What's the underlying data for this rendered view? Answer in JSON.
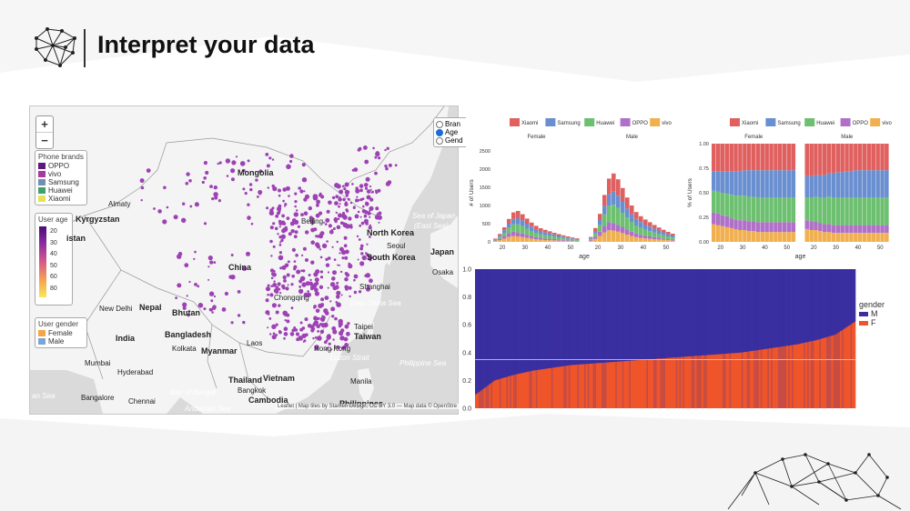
{
  "slide": {
    "title": "Interpret your data"
  },
  "map": {
    "zoom_in": "+",
    "zoom_out": "−",
    "view_options": [
      {
        "label": "Bran",
        "selected": false
      },
      {
        "label": "Age",
        "selected": true
      },
      {
        "label": "Gend",
        "selected": false
      }
    ],
    "phone_brands": {
      "title": "Phone brands",
      "items": [
        {
          "label": "OPPO",
          "color": "#5b1a7a"
        },
        {
          "label": "vivo",
          "color": "#a53aa0"
        },
        {
          "label": "Samsung",
          "color": "#6f8fb3"
        },
        {
          "label": "Huawei",
          "color": "#3fa26a"
        },
        {
          "label": "Xiaomi",
          "color": "#e5e25a"
        }
      ]
    },
    "user_age": {
      "title": "User age",
      "ticks": [
        "20",
        "30",
        "40",
        "50",
        "60",
        "80"
      ]
    },
    "user_gender": {
      "title": "User gender",
      "items": [
        {
          "label": "Female",
          "color": "#f4a547"
        },
        {
          "label": "Male",
          "color": "#7aa5d6"
        }
      ]
    },
    "labels": {
      "mongolia": "Mongolia",
      "almaty": "Almaty",
      "kyrgyzstan": "Kyrgyzstan",
      "istan": "istan",
      "china": "China",
      "beijing": "Beijing",
      "north_korea": "North Korea",
      "seoul": "Seoul",
      "south_korea": "South Korea",
      "japan": "Japan",
      "osaka": "Osaka",
      "sea_of_japan": "Sea of Japan",
      "east_sea": "(East Sea)",
      "shanghai": "Shanghai",
      "east_china_sea": "East China Sea",
      "chongqing": "Chongqing",
      "nepal": "Nepal",
      "new_delhi": "New Delhi",
      "bhutan": "Bhutan",
      "india": "India",
      "bangladesh": "Bangladesh",
      "kolkata": "Kolkata",
      "myanmar": "Myanmar",
      "laos": "Laos",
      "mumbai": "Mumbai",
      "hyderabad": "Hyderabad",
      "thailand": "Thailand",
      "vietnam": "Vietnam",
      "bangkok": "Bangkok",
      "bay_of_bengal": "Bay of Bengal",
      "cambodia": "Cambodia",
      "bangalore": "Bangalore",
      "chennai": "Chennai",
      "taipei": "Taipei",
      "taiwan": "Taiwan",
      "hong_kong": "Hong Kong",
      "luzon_strait": "Luzon Strait",
      "philippine_sea": "Philippine Sea",
      "philippines": "Philippines",
      "manila": "Manila",
      "an_sea": "an Sea",
      "andaman_sea": "Andaman Sea"
    },
    "attribution": "Leaflet | Map tiles by Stamen Design, CC BY 3.0 — Map data © OpenStre"
  },
  "colors": {
    "xiaomi": "#e06060",
    "samsung": "#6a8fd0",
    "huawei": "#6cc070",
    "oppo": "#b070c8",
    "vivo": "#f0b050",
    "gender_m": "#3a2fa0",
    "gender_f": "#f0552a"
  },
  "chart_data": [
    {
      "type": "bar",
      "stacked": true,
      "legend": [
        "Xiaomi",
        "Samsung",
        "Huawei",
        "OPPO",
        "vivo"
      ],
      "facets": [
        "Female",
        "Male"
      ],
      "xlabel": "age",
      "ylabel": "# of Users",
      "xticks": [
        "20",
        "30",
        "40",
        "50"
      ],
      "yticks": [
        "0",
        "500",
        "1000",
        "1500",
        "2000",
        "2500"
      ],
      "ylim": [
        0,
        2700
      ],
      "x": [
        17,
        19,
        21,
        23,
        25,
        27,
        29,
        31,
        33,
        35,
        37,
        39,
        41,
        43,
        45,
        47,
        49,
        51,
        53
      ],
      "series_female": [
        {
          "name": "vivo",
          "values": [
            20,
            50,
            90,
            140,
            160,
            150,
            130,
            110,
            90,
            70,
            60,
            50,
            45,
            40,
            35,
            30,
            25,
            20,
            15
          ]
        },
        {
          "name": "OPPO",
          "values": [
            20,
            40,
            70,
            100,
            120,
            110,
            100,
            80,
            70,
            60,
            50,
            45,
            40,
            35,
            30,
            25,
            20,
            15,
            12
          ]
        },
        {
          "name": "Huawei",
          "values": [
            20,
            50,
            90,
            150,
            200,
            220,
            200,
            170,
            140,
            120,
            100,
            90,
            80,
            70,
            60,
            50,
            40,
            30,
            25
          ]
        },
        {
          "name": "Samsung",
          "values": [
            15,
            40,
            70,
            110,
            150,
            170,
            160,
            140,
            120,
            100,
            90,
            80,
            70,
            60,
            50,
            40,
            35,
            30,
            25
          ]
        },
        {
          "name": "Xiaomi",
          "values": [
            15,
            40,
            80,
            130,
            180,
            200,
            170,
            140,
            110,
            90,
            75,
            65,
            55,
            45,
            40,
            35,
            30,
            25,
            20
          ]
        }
      ],
      "series_male": [
        {
          "name": "vivo",
          "values": [
            30,
            80,
            160,
            260,
            320,
            310,
            280,
            240,
            200,
            160,
            130,
            110,
            95,
            85,
            75,
            65,
            55,
            45,
            35
          ]
        },
        {
          "name": "OPPO",
          "values": [
            25,
            60,
            120,
            180,
            220,
            210,
            190,
            160,
            140,
            120,
            100,
            85,
            75,
            65,
            55,
            45,
            38,
            30,
            25
          ]
        },
        {
          "name": "Huawei",
          "values": [
            30,
            90,
            180,
            320,
            450,
            500,
            460,
            400,
            330,
            270,
            220,
            190,
            165,
            145,
            125,
            105,
            90,
            75,
            60
          ]
        },
        {
          "name": "Samsung",
          "values": [
            25,
            70,
            140,
            230,
            320,
            360,
            340,
            300,
            250,
            210,
            180,
            160,
            140,
            125,
            110,
            95,
            80,
            65,
            55
          ]
        },
        {
          "name": "Xiaomi",
          "values": [
            25,
            80,
            170,
            300,
            430,
            500,
            450,
            380,
            300,
            240,
            190,
            160,
            140,
            120,
            100,
            85,
            70,
            60,
            50
          ]
        }
      ]
    },
    {
      "type": "bar",
      "stacked": true,
      "normalized": true,
      "legend": [
        "Xiaomi",
        "Samsung",
        "Huawei",
        "OPPO",
        "vivo"
      ],
      "facets": [
        "Female",
        "Male"
      ],
      "xlabel": "age",
      "ylabel": "% of Users",
      "xticks": [
        "20",
        "30",
        "40",
        "50"
      ],
      "yticks": [
        "0.00",
        "0.25",
        "0.50",
        "0.75",
        "1.00"
      ],
      "ylim": [
        0,
        1
      ],
      "x": [
        17,
        19,
        21,
        23,
        25,
        27,
        29,
        31,
        33,
        35,
        37,
        39,
        41,
        43,
        45,
        47,
        49,
        51,
        53
      ],
      "series_female": [
        {
          "name": "vivo",
          "values": [
            0.18,
            0.17,
            0.16,
            0.15,
            0.14,
            0.13,
            0.12,
            0.12,
            0.11,
            0.11,
            0.1,
            0.1,
            0.1,
            0.1,
            0.1,
            0.1,
            0.1,
            0.1,
            0.1
          ]
        },
        {
          "name": "OPPO",
          "values": [
            0.12,
            0.12,
            0.11,
            0.11,
            0.1,
            0.1,
            0.1,
            0.1,
            0.1,
            0.1,
            0.1,
            0.1,
            0.1,
            0.1,
            0.1,
            0.1,
            0.1,
            0.1,
            0.1
          ]
        },
        {
          "name": "Huawei",
          "values": [
            0.22,
            0.22,
            0.23,
            0.23,
            0.24,
            0.24,
            0.25,
            0.25,
            0.25,
            0.25,
            0.25,
            0.25,
            0.25,
            0.25,
            0.25,
            0.25,
            0.25,
            0.25,
            0.25
          ]
        },
        {
          "name": "Samsung",
          "values": [
            0.2,
            0.21,
            0.22,
            0.23,
            0.24,
            0.25,
            0.25,
            0.26,
            0.27,
            0.27,
            0.28,
            0.28,
            0.28,
            0.28,
            0.28,
            0.28,
            0.28,
            0.28,
            0.28
          ]
        },
        {
          "name": "Xiaomi",
          "values": [
            0.28,
            0.28,
            0.28,
            0.28,
            0.28,
            0.28,
            0.28,
            0.27,
            0.27,
            0.27,
            0.27,
            0.27,
            0.27,
            0.27,
            0.27,
            0.27,
            0.27,
            0.27,
            0.27
          ]
        }
      ],
      "series_male": [
        {
          "name": "vivo",
          "values": [
            0.13,
            0.12,
            0.12,
            0.11,
            0.1,
            0.1,
            0.09,
            0.09,
            0.09,
            0.09,
            0.09,
            0.09,
            0.09,
            0.09,
            0.09,
            0.09,
            0.09,
            0.09,
            0.09
          ]
        },
        {
          "name": "OPPO",
          "values": [
            0.09,
            0.09,
            0.09,
            0.08,
            0.08,
            0.08,
            0.08,
            0.08,
            0.08,
            0.08,
            0.08,
            0.08,
            0.08,
            0.08,
            0.08,
            0.08,
            0.08,
            0.08,
            0.08
          ]
        },
        {
          "name": "Huawei",
          "values": [
            0.23,
            0.24,
            0.25,
            0.26,
            0.27,
            0.28,
            0.28,
            0.28,
            0.28,
            0.28,
            0.28,
            0.28,
            0.28,
            0.28,
            0.28,
            0.28,
            0.28,
            0.28,
            0.28
          ]
        },
        {
          "name": "Samsung",
          "values": [
            0.22,
            0.22,
            0.22,
            0.23,
            0.23,
            0.24,
            0.25,
            0.26,
            0.26,
            0.27,
            0.27,
            0.28,
            0.28,
            0.28,
            0.28,
            0.28,
            0.28,
            0.28,
            0.28
          ]
        },
        {
          "name": "Xiaomi",
          "values": [
            0.33,
            0.33,
            0.32,
            0.32,
            0.32,
            0.3,
            0.3,
            0.29,
            0.29,
            0.28,
            0.28,
            0.27,
            0.27,
            0.27,
            0.27,
            0.27,
            0.27,
            0.27,
            0.27
          ]
        }
      ]
    },
    {
      "type": "bar",
      "stacked": true,
      "normalized": true,
      "legend_title": "gender",
      "legend": [
        "M",
        "F"
      ],
      "yticks": [
        "0.0",
        "0.2",
        "0.4",
        "0.6",
        "0.8",
        "1.0"
      ],
      "ylim": [
        0,
        1
      ],
      "reference_line": 0.35,
      "female_share_quantiles": [
        0.1,
        0.2,
        0.24,
        0.27,
        0.29,
        0.31,
        0.32,
        0.33,
        0.34,
        0.35,
        0.36,
        0.37,
        0.38,
        0.39,
        0.4,
        0.42,
        0.44,
        0.46,
        0.49,
        0.53,
        0.62
      ]
    }
  ]
}
